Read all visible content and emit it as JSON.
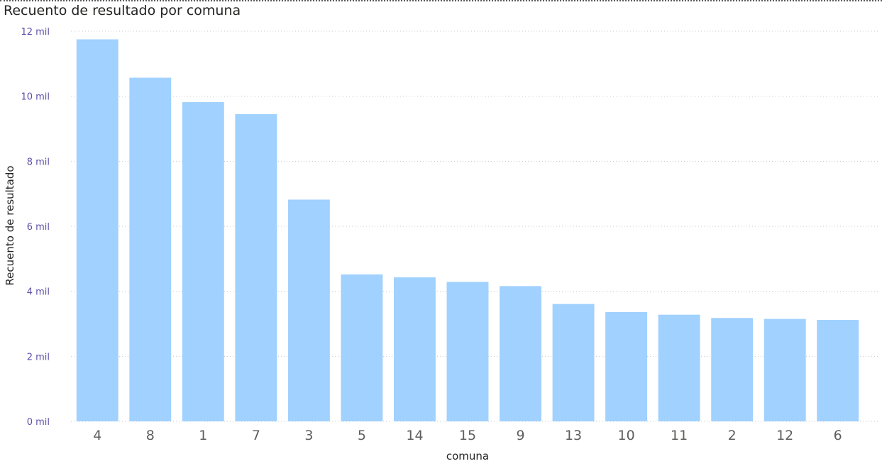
{
  "chart_data": {
    "type": "bar",
    "title": "Recuento de resultado por comuna",
    "xlabel": "comuna",
    "ylabel": "Recuento de resultado",
    "categories": [
      "4",
      "8",
      "1",
      "7",
      "3",
      "5",
      "14",
      "15",
      "9",
      "13",
      "10",
      "11",
      "2",
      "12",
      "6"
    ],
    "values": [
      11750,
      10570,
      9820,
      9450,
      6820,
      4520,
      4430,
      4290,
      4160,
      3610,
      3360,
      3280,
      3180,
      3150,
      3120
    ],
    "ylim": [
      0,
      12000
    ],
    "yticks": [
      0,
      2000,
      4000,
      6000,
      8000,
      10000,
      12000
    ],
    "ytick_labels": [
      "0 mil",
      "2 mil",
      "4 mil",
      "6 mil",
      "8 mil",
      "10 mil",
      "12 mil"
    ],
    "grid": true,
    "colors": {
      "bar": "#a0d1ff",
      "gridline": "#c8c8c8",
      "ytick": "#5b4fa6",
      "xtick": "#605e5c"
    }
  }
}
